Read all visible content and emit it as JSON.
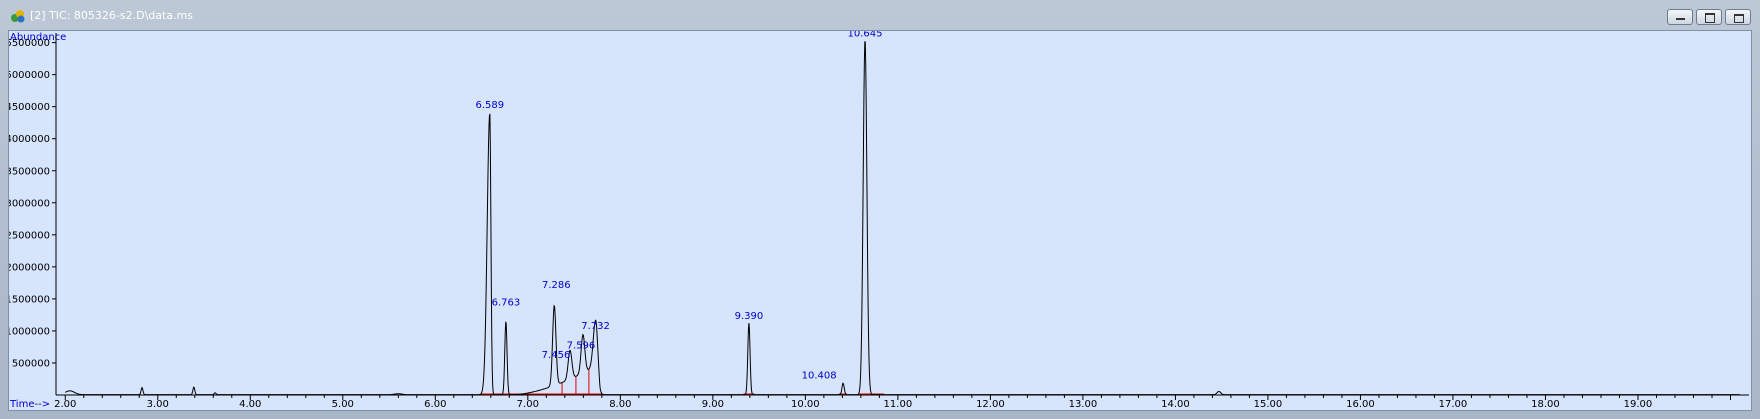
{
  "window": {
    "title": "[2] TIC: 805326-s2.D\\data.ms",
    "buttons": {
      "minimize": "minimize",
      "restore": "restore",
      "close": "close"
    }
  },
  "colors": {
    "background": "#d6e4fc",
    "trace": "#000000",
    "peak_label": "#0000cc",
    "axis_label": "#0000cc",
    "integration": "#dd0000"
  },
  "chart_data": {
    "type": "line",
    "ylabel": "Abundance",
    "xlabel": "Time-->",
    "xlim": [
      1.9,
      20.2
    ],
    "ylim": [
      0,
      5650000
    ],
    "x_ticks": [
      "2.00",
      "3.00",
      "4.00",
      "5.00",
      "6.00",
      "7.00",
      "8.00",
      "9.00",
      "10.00",
      "11.00",
      "12.00",
      "13.00",
      "14.00",
      "15.00",
      "16.00",
      "17.00",
      "18.00",
      "19.00"
    ],
    "y_ticks": [
      "500000",
      "1000000",
      "1500000",
      "2000000",
      "2500000",
      "3000000",
      "3500000",
      "4000000",
      "4500000",
      "5000000",
      "5500000"
    ],
    "peaks": [
      {
        "label": "6.589",
        "x": 6.589,
        "y": 4400000
      },
      {
        "label": "6.763",
        "x": 6.763,
        "y": 1150000
      },
      {
        "label": "7.286",
        "x": 7.286,
        "y": 1250000
      },
      {
        "label": "7.456",
        "x": 7.456,
        "y": 450000
      },
      {
        "label": "7.596",
        "x": 7.596,
        "y": 600000
      },
      {
        "label": "7.732",
        "x": 7.732,
        "y": 720000
      },
      {
        "label": "9.390",
        "x": 9.39,
        "y": 1120000
      },
      {
        "label": "10.408",
        "x": 10.408,
        "y": 180000
      },
      {
        "label": "10.645",
        "x": 10.645,
        "y": 5550000
      }
    ],
    "grid": false,
    "legend": "none"
  }
}
